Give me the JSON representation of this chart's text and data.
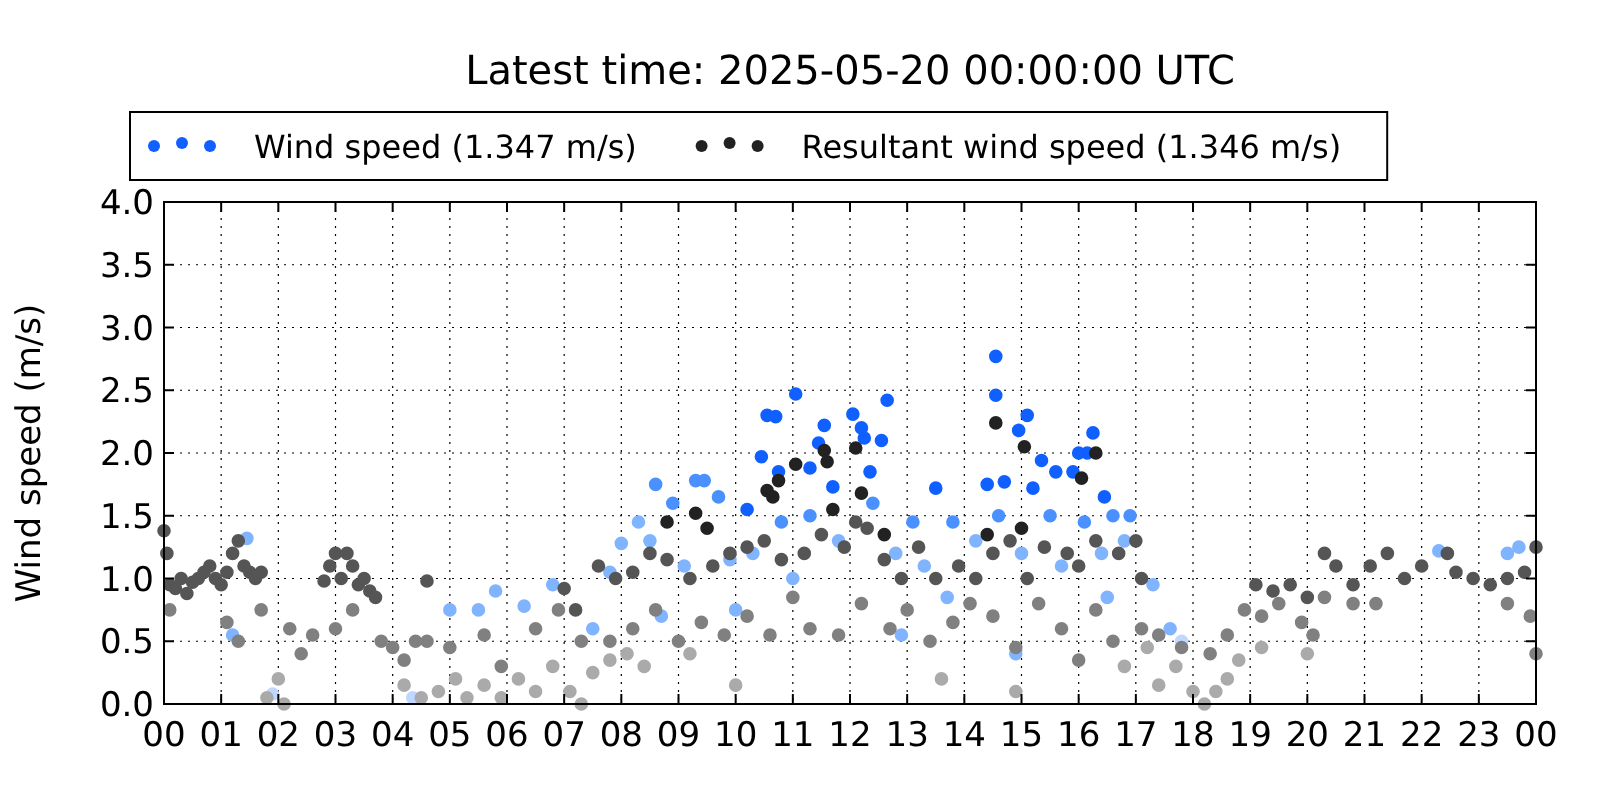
{
  "chart_data": {
    "type": "scatter",
    "title": "Latest time: 2025-05-20 00:00:00 UTC",
    "ylabel": "Wind speed (m/s)",
    "xlim": [
      0,
      24
    ],
    "xticks": [
      {
        "value": 0,
        "label": "00"
      },
      {
        "value": 1,
        "label": "01"
      },
      {
        "value": 2,
        "label": "02"
      },
      {
        "value": 3,
        "label": "03"
      },
      {
        "value": 4,
        "label": "04"
      },
      {
        "value": 5,
        "label": "05"
      },
      {
        "value": 6,
        "label": "06"
      },
      {
        "value": 7,
        "label": "07"
      },
      {
        "value": 8,
        "label": "08"
      },
      {
        "value": 9,
        "label": "09"
      },
      {
        "value": 10,
        "label": "10"
      },
      {
        "value": 11,
        "label": "11"
      },
      {
        "value": 12,
        "label": "12"
      },
      {
        "value": 13,
        "label": "13"
      },
      {
        "value": 14,
        "label": "14"
      },
      {
        "value": 15,
        "label": "15"
      },
      {
        "value": 16,
        "label": "16"
      },
      {
        "value": 17,
        "label": "17"
      },
      {
        "value": 18,
        "label": "18"
      },
      {
        "value": 19,
        "label": "19"
      },
      {
        "value": 20,
        "label": "20"
      },
      {
        "value": 21,
        "label": "21"
      },
      {
        "value": 22,
        "label": "22"
      },
      {
        "value": 23,
        "label": "23"
      },
      {
        "value": 24,
        "label": "00"
      }
    ],
    "ylim": [
      0,
      4
    ],
    "yticks": [
      {
        "value": 0,
        "label": "0.0"
      },
      {
        "value": 0.5,
        "label": "0.5"
      },
      {
        "value": 1,
        "label": "1.0"
      },
      {
        "value": 1.5,
        "label": "1.5"
      },
      {
        "value": 2,
        "label": "2.0"
      },
      {
        "value": 2.5,
        "label": "2.5"
      },
      {
        "value": 3,
        "label": "3.0"
      },
      {
        "value": 3.5,
        "label": "3.5"
      },
      {
        "value": 4,
        "label": "4.0"
      }
    ],
    "grid": true,
    "legend": "top",
    "marker": "circle",
    "series": [
      {
        "color": "#c0d8ff",
        "x": [
          1.9,
          4.35,
          17.8
        ],
        "values": [
          0.08,
          0.05,
          0.5
        ]
      },
      {
        "color": "#80b4ff",
        "x": [
          7.8,
          8.0,
          8.3,
          8.5,
          9.1,
          9.9,
          10.3,
          11.0,
          11.8,
          12.8,
          13.3,
          13.7,
          14.2,
          15.0,
          15.7,
          16.4,
          16.8,
          17.3,
          17.6,
          5.0,
          5.5,
          5.8,
          6.3,
          6.8,
          7.5,
          8.7,
          10.0,
          12.9,
          14.9,
          16.5,
          22.3,
          23.5,
          23.7,
          1.45,
          1.2
        ],
        "values": [
          1.05,
          1.28,
          1.45,
          1.3,
          1.1,
          1.15,
          1.2,
          1.0,
          1.3,
          1.2,
          1.1,
          0.85,
          1.3,
          1.2,
          1.1,
          1.2,
          1.3,
          0.95,
          0.6,
          0.75,
          0.75,
          0.9,
          0.78,
          0.95,
          0.6,
          0.7,
          0.75,
          0.55,
          0.4,
          0.85,
          1.22,
          1.2,
          1.25,
          1.32,
          0.55
        ]
      },
      {
        "color": "#4a90ff",
        "x": [
          8.6,
          8.9,
          9.3,
          9.45,
          9.7,
          12.4,
          13.1,
          13.8,
          14.6,
          15.5,
          16.1,
          16.6,
          16.9,
          10.8,
          11.3
        ],
        "values": [
          1.75,
          1.6,
          1.78,
          1.78,
          1.65,
          1.6,
          1.45,
          1.45,
          1.5,
          1.5,
          1.45,
          1.5,
          1.5,
          1.45,
          1.5
        ]
      },
      {
        "color": "#aaaaaa",
        "x": [
          1.8,
          2.0,
          2.1,
          4.2,
          4.5,
          4.8,
          5.1,
          5.3,
          5.6,
          5.9,
          6.2,
          6.5,
          6.8,
          7.1,
          7.3,
          7.5,
          7.8,
          8.1,
          8.4,
          9.2,
          10.0,
          13.6,
          14.9,
          16.8,
          17.2,
          17.4,
          17.7,
          18.0,
          18.2,
          18.4,
          18.6,
          18.8,
          19.2,
          20.0
        ],
        "values": [
          0.05,
          0.2,
          0.0,
          0.15,
          0.05,
          0.1,
          0.2,
          0.05,
          0.15,
          0.05,
          0.2,
          0.1,
          0.3,
          0.1,
          0.0,
          0.25,
          0.35,
          0.4,
          0.3,
          0.4,
          0.15,
          0.2,
          0.1,
          0.3,
          0.45,
          0.15,
          0.3,
          0.1,
          0.0,
          0.1,
          0.2,
          0.35,
          0.45,
          0.4
        ]
      },
      {
        "color": "#808080",
        "x": [
          0.1,
          1.1,
          1.3,
          1.7,
          2.2,
          2.4,
          2.6,
          3.0,
          3.3,
          3.8,
          4.0,
          4.2,
          4.4,
          4.6,
          5.0,
          5.6,
          5.9,
          6.5,
          6.9,
          7.3,
          7.8,
          8.2,
          8.6,
          9.0,
          9.4,
          9.8,
          10.2,
          10.6,
          11.0,
          11.3,
          11.8,
          12.2,
          12.7,
          13.0,
          13.4,
          13.8,
          14.1,
          14.5,
          14.9,
          15.3,
          15.7,
          16.0,
          16.3,
          16.6,
          17.1,
          17.4,
          17.8,
          18.3,
          18.6,
          18.9,
          19.2,
          19.5,
          19.9,
          20.1,
          20.3,
          20.8,
          21.2,
          23.5,
          23.9,
          24.0
        ],
        "values": [
          0.75,
          0.65,
          0.5,
          0.75,
          0.6,
          0.4,
          0.55,
          0.6,
          0.75,
          0.5,
          0.45,
          0.35,
          0.5,
          0.5,
          0.45,
          0.55,
          0.3,
          0.6,
          0.75,
          0.5,
          0.5,
          0.6,
          0.75,
          0.5,
          0.65,
          0.55,
          0.7,
          0.55,
          0.85,
          0.6,
          0.55,
          0.8,
          0.6,
          0.75,
          0.5,
          0.65,
          0.8,
          0.7,
          0.45,
          0.8,
          0.6,
          0.35,
          0.75,
          0.5,
          0.6,
          0.55,
          0.45,
          0.4,
          0.55,
          0.75,
          0.7,
          0.8,
          0.65,
          0.55,
          0.85,
          0.8,
          0.8,
          0.8,
          0.7,
          0.4
        ]
      },
      {
        "color": "#555555",
        "x": [
          0.0,
          0.05,
          0.1,
          0.2,
          0.3,
          0.4,
          0.5,
          0.6,
          0.7,
          0.8,
          0.9,
          1.0,
          1.1,
          1.2,
          1.3,
          1.4,
          1.5,
          1.6,
          1.7,
          2.8,
          2.9,
          3.0,
          3.1,
          3.2,
          3.3,
          3.4,
          3.5,
          3.6,
          3.7,
          4.6,
          7.0,
          7.2,
          7.6,
          7.9,
          8.2,
          8.5,
          8.8,
          9.2,
          9.6,
          9.9,
          10.2,
          10.5,
          10.8,
          11.2,
          11.5,
          11.9,
          12.1,
          12.3,
          12.6,
          12.9,
          13.2,
          13.5,
          13.9,
          14.2,
          14.5,
          14.8,
          15.1,
          15.4,
          15.8,
          16.0,
          16.3,
          16.7,
          17.0,
          17.1,
          19.1,
          19.4,
          19.7,
          20.0,
          20.3,
          20.5,
          20.8,
          21.1,
          21.4,
          21.7,
          22.0,
          22.45,
          22.6,
          22.9,
          23.2,
          23.5,
          23.8,
          24.0
        ],
        "values": [
          1.38,
          1.2,
          0.95,
          0.92,
          1.0,
          0.88,
          0.97,
          1.0,
          1.05,
          1.1,
          1.0,
          0.95,
          1.05,
          1.2,
          1.3,
          1.1,
          1.05,
          1.0,
          1.05,
          0.98,
          1.1,
          1.2,
          1.0,
          1.2,
          1.1,
          0.95,
          1.0,
          0.9,
          0.85,
          0.98,
          0.92,
          0.75,
          1.1,
          1.0,
          1.05,
          1.2,
          1.15,
          1.0,
          1.1,
          1.2,
          1.25,
          1.3,
          1.15,
          1.2,
          1.35,
          1.25,
          1.45,
          1.4,
          1.15,
          1.0,
          1.25,
          1.0,
          1.1,
          1.0,
          1.2,
          1.3,
          1.0,
          1.25,
          1.2,
          1.1,
          1.3,
          1.2,
          1.3,
          1.0,
          0.95,
          0.9,
          0.95,
          0.85,
          1.2,
          1.1,
          0.95,
          1.1,
          1.2,
          1.0,
          1.1,
          1.2,
          1.05,
          1.0,
          0.95,
          1.0,
          1.05,
          1.25
        ]
      },
      {
        "name": "Wind speed (1.347 m/s)",
        "color": "#1060ff",
        "x": [
          10.45,
          10.55,
          10.7,
          11.05,
          11.55,
          11.45,
          12.05,
          12.2,
          12.25,
          12.65,
          12.55,
          14.55,
          14.55,
          15.1,
          14.95,
          15.35,
          16.25,
          16.0,
          16.15,
          13.5,
          11.7,
          14.4,
          14.7,
          15.6,
          15.9,
          10.75,
          11.3,
          10.2,
          16.45,
          12.35,
          15.2
        ],
        "values": [
          1.97,
          2.3,
          2.29,
          2.47,
          2.22,
          2.08,
          2.31,
          2.2,
          2.12,
          2.42,
          2.1,
          2.77,
          2.46,
          2.3,
          2.18,
          1.94,
          2.16,
          2.0,
          2.0,
          1.72,
          1.73,
          1.75,
          1.77,
          1.85,
          1.85,
          1.85,
          1.88,
          1.55,
          1.65,
          1.85,
          1.72
        ]
      },
      {
        "name": "Resultant wind speed (1.346 m/s)",
        "color": "#222222",
        "x": [
          10.55,
          10.65,
          10.75,
          11.05,
          11.55,
          11.6,
          12.1,
          12.2,
          14.55,
          15.05,
          16.05,
          16.3,
          11.7,
          12.6,
          14.4,
          15.0,
          8.8,
          9.3,
          9.5
        ],
        "values": [
          1.7,
          1.65,
          1.78,
          1.91,
          2.02,
          1.93,
          2.04,
          1.68,
          2.24,
          2.05,
          1.8,
          2.0,
          1.55,
          1.35,
          1.35,
          1.4,
          1.45,
          1.52,
          1.4
        ]
      }
    ]
  }
}
